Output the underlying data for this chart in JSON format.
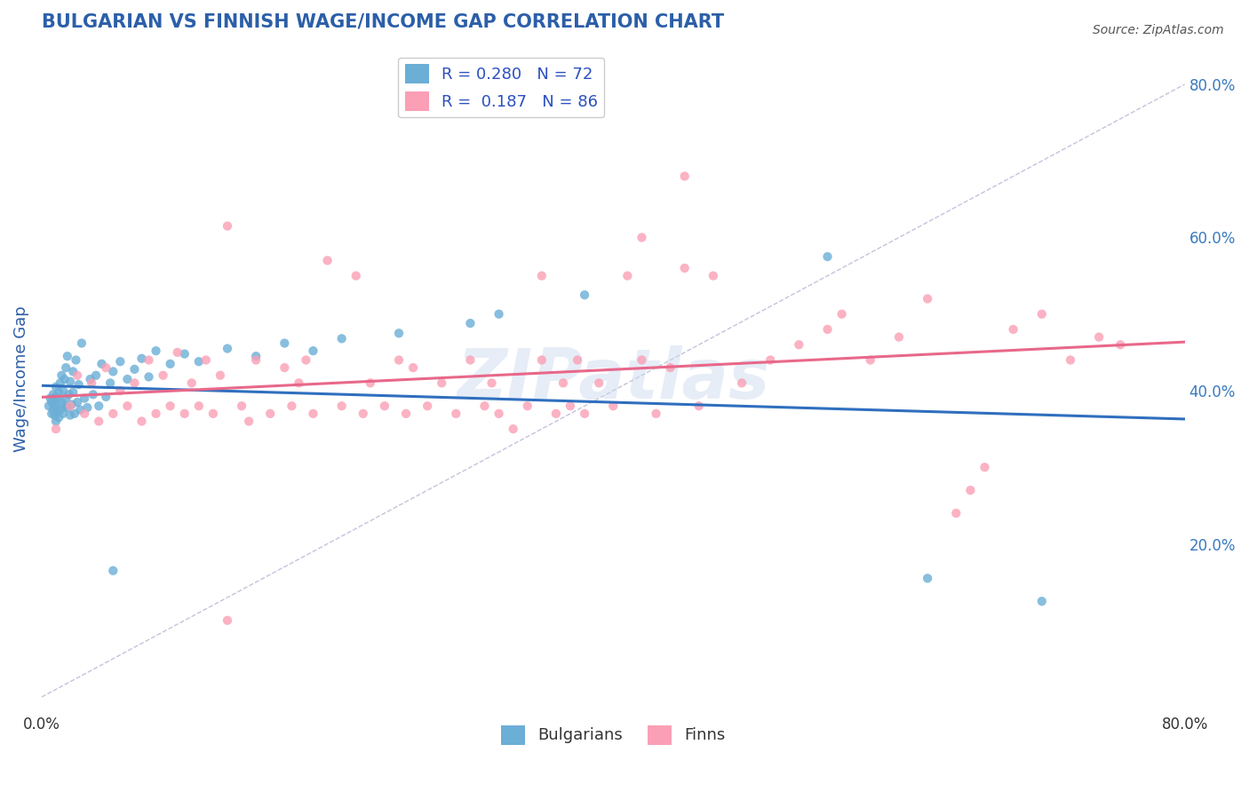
{
  "title": "BULGARIAN VS FINNISH WAGE/INCOME GAP CORRELATION CHART",
  "source": "Source: ZipAtlas.com",
  "ylabel": "Wage/Income Gap",
  "xlim": [
    0.0,
    0.8
  ],
  "ylim": [
    -0.02,
    0.85
  ],
  "ytick_right_vals": [
    0.2,
    0.4,
    0.6,
    0.8
  ],
  "ytick_right_labels": [
    "20.0%",
    "40.0%",
    "60.0%",
    "80.0%"
  ],
  "bulgarian_color": "#6baed6",
  "finnish_color": "#fa9fb5",
  "bulgarian_R": 0.28,
  "bulgarian_N": 72,
  "finnish_R": 0.187,
  "finnish_N": 86,
  "legend_label_1": "Bulgarians",
  "legend_label_2": "Finns",
  "watermark": "ZIPatlas",
  "background_color": "#ffffff",
  "grid_color": "#cccccc",
  "title_color": "#2c5fa8",
  "axis_label_color": "#2c5fa8",
  "bulgarians_x": [
    0.005,
    0.006,
    0.007,
    0.007,
    0.008,
    0.008,
    0.009,
    0.009,
    0.01,
    0.01,
    0.01,
    0.01,
    0.011,
    0.011,
    0.012,
    0.012,
    0.013,
    0.013,
    0.014,
    0.014,
    0.015,
    0.015,
    0.016,
    0.016,
    0.017,
    0.017,
    0.018,
    0.018,
    0.019,
    0.02,
    0.02,
    0.021,
    0.022,
    0.022,
    0.023,
    0.024,
    0.025,
    0.026,
    0.027,
    0.028,
    0.03,
    0.032,
    0.034,
    0.036,
    0.038,
    0.04,
    0.042,
    0.045,
    0.048,
    0.05,
    0.055,
    0.06,
    0.065,
    0.07,
    0.075,
    0.08,
    0.09,
    0.1,
    0.11,
    0.13,
    0.15,
    0.17,
    0.19,
    0.21,
    0.25,
    0.3,
    0.32,
    0.38,
    0.55,
    0.62,
    0.7,
    0.05
  ],
  "bulgarians_y": [
    0.38,
    0.39,
    0.37,
    0.385,
    0.375,
    0.395,
    0.368,
    0.382,
    0.36,
    0.378,
    0.392,
    0.405,
    0.372,
    0.388,
    0.365,
    0.398,
    0.375,
    0.41,
    0.385,
    0.42,
    0.37,
    0.4,
    0.38,
    0.415,
    0.39,
    0.43,
    0.378,
    0.445,
    0.395,
    0.368,
    0.412,
    0.382,
    0.398,
    0.425,
    0.37,
    0.44,
    0.385,
    0.408,
    0.375,
    0.462,
    0.39,
    0.378,
    0.415,
    0.395,
    0.42,
    0.38,
    0.435,
    0.392,
    0.41,
    0.425,
    0.438,
    0.415,
    0.428,
    0.442,
    0.418,
    0.452,
    0.435,
    0.448,
    0.438,
    0.455,
    0.445,
    0.462,
    0.452,
    0.468,
    0.475,
    0.488,
    0.5,
    0.525,
    0.575,
    0.155,
    0.125,
    0.165
  ],
  "finns_x": [
    0.01,
    0.02,
    0.025,
    0.03,
    0.035,
    0.04,
    0.045,
    0.05,
    0.055,
    0.06,
    0.065,
    0.07,
    0.075,
    0.08,
    0.085,
    0.09,
    0.095,
    0.1,
    0.105,
    0.11,
    0.115,
    0.12,
    0.125,
    0.13,
    0.14,
    0.145,
    0.15,
    0.16,
    0.17,
    0.175,
    0.18,
    0.185,
    0.19,
    0.2,
    0.21,
    0.22,
    0.225,
    0.23,
    0.24,
    0.25,
    0.255,
    0.26,
    0.27,
    0.28,
    0.29,
    0.3,
    0.31,
    0.315,
    0.32,
    0.33,
    0.34,
    0.35,
    0.36,
    0.365,
    0.37,
    0.375,
    0.38,
    0.39,
    0.4,
    0.41,
    0.42,
    0.43,
    0.44,
    0.45,
    0.46,
    0.47,
    0.49,
    0.51,
    0.53,
    0.55,
    0.56,
    0.58,
    0.6,
    0.62,
    0.64,
    0.65,
    0.66,
    0.68,
    0.7,
    0.72,
    0.74,
    0.755,
    0.35,
    0.42,
    0.13,
    0.45
  ],
  "finns_y": [
    0.35,
    0.38,
    0.42,
    0.37,
    0.41,
    0.36,
    0.43,
    0.37,
    0.4,
    0.38,
    0.41,
    0.36,
    0.44,
    0.37,
    0.42,
    0.38,
    0.45,
    0.37,
    0.41,
    0.38,
    0.44,
    0.37,
    0.42,
    0.615,
    0.38,
    0.36,
    0.44,
    0.37,
    0.43,
    0.38,
    0.41,
    0.44,
    0.37,
    0.57,
    0.38,
    0.55,
    0.37,
    0.41,
    0.38,
    0.44,
    0.37,
    0.43,
    0.38,
    0.41,
    0.37,
    0.44,
    0.38,
    0.41,
    0.37,
    0.35,
    0.38,
    0.44,
    0.37,
    0.41,
    0.38,
    0.44,
    0.37,
    0.41,
    0.38,
    0.55,
    0.44,
    0.37,
    0.43,
    0.56,
    0.38,
    0.55,
    0.41,
    0.44,
    0.46,
    0.48,
    0.5,
    0.44,
    0.47,
    0.52,
    0.24,
    0.27,
    0.3,
    0.48,
    0.5,
    0.44,
    0.47,
    0.46,
    0.55,
    0.6,
    0.1,
    0.68
  ]
}
